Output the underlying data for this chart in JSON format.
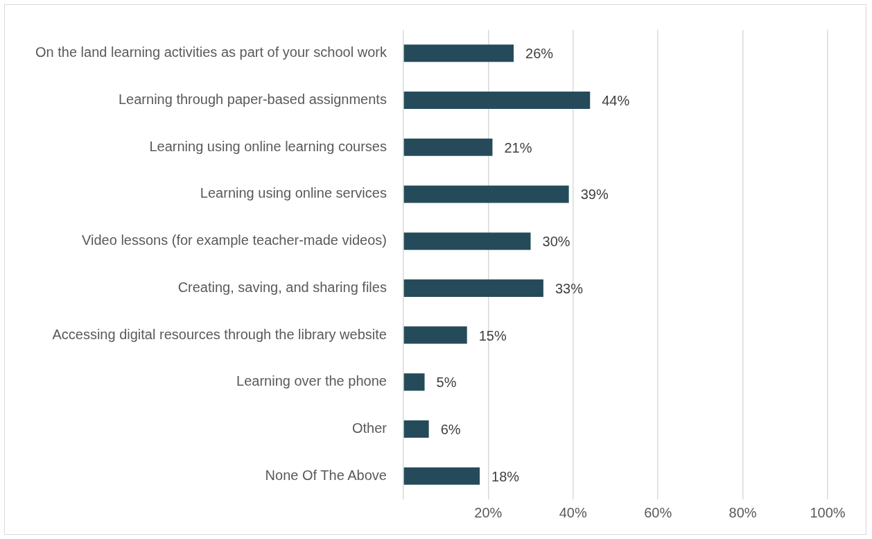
{
  "chart_data": {
    "type": "bar",
    "orientation": "horizontal",
    "categories": [
      "On the land learning activities as part of your school work",
      "Learning through paper-based assignments",
      "Learning using online learning courses",
      "Learning using online services",
      "Video lessons (for example teacher-made videos)",
      "Creating, saving, and sharing files",
      "Accessing digital resources through the library website",
      "Learning over the phone",
      "Other",
      "None Of The Above"
    ],
    "values": [
      26,
      44,
      21,
      39,
      30,
      33,
      15,
      5,
      6,
      18
    ],
    "value_labels": [
      "26%",
      "44%",
      "21%",
      "39%",
      "30%",
      "33%",
      "15%",
      "5%",
      "6%",
      "18%"
    ],
    "color": "#254b5a",
    "xlim": [
      0,
      100
    ],
    "xticks": [
      {
        "value": 0,
        "label": null
      },
      {
        "value": 20,
        "label": "20%"
      },
      {
        "value": 40,
        "label": "40%"
      },
      {
        "value": 60,
        "label": "60%"
      },
      {
        "value": 80,
        "label": "80%"
      },
      {
        "value": 100,
        "label": "100%"
      }
    ],
    "grid": "x"
  }
}
